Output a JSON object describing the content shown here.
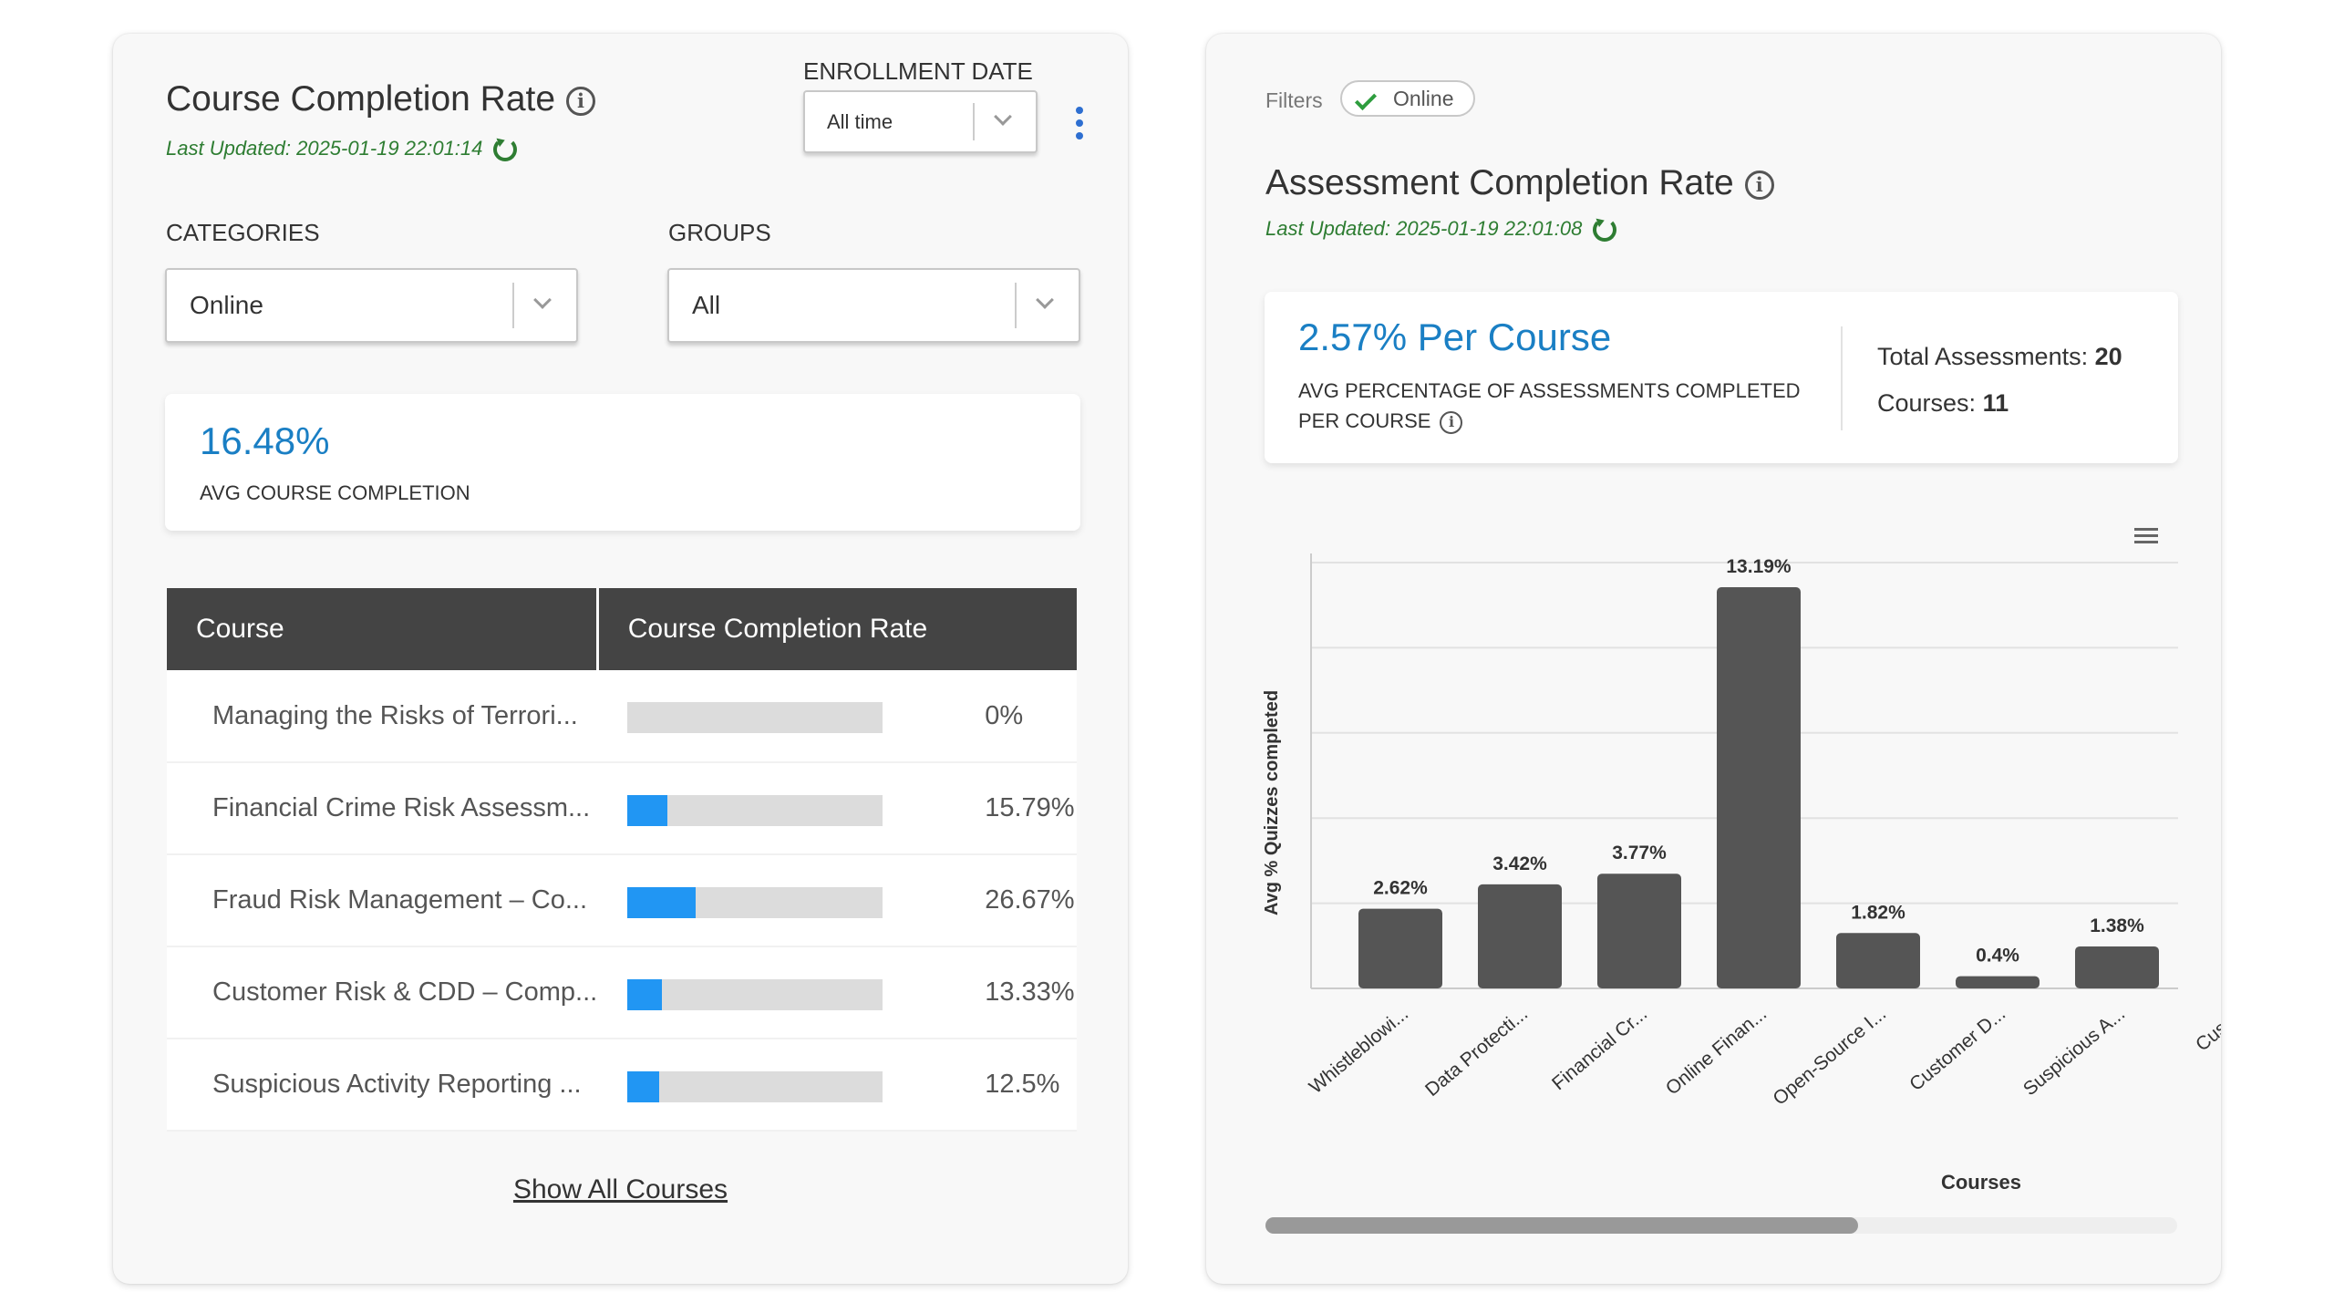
{
  "left": {
    "title": "Course Completion Rate",
    "info": "i",
    "last_updated": "Last Updated: 2025-01-19 22:01:14",
    "enrollment_label": "ENROLLMENT DATE",
    "enrollment_value": "All time",
    "categories_label": "CATEGORIES",
    "categories_value": "Online",
    "groups_label": "GROUPS",
    "groups_value": "All",
    "avg_value": "16.48%",
    "avg_label": "AVG COURSE COMPLETION",
    "table": {
      "headers": [
        "Course",
        "Course Completion Rate"
      ],
      "rows": [
        {
          "name": "Managing the Risks of Terrori...",
          "rate": 0,
          "label": "0%"
        },
        {
          "name": "Financial Crime Risk Assessm...",
          "rate": 15.79,
          "label": "15.79%"
        },
        {
          "name": "Fraud Risk Management – Co...",
          "rate": 26.67,
          "label": "26.67%"
        },
        {
          "name": "Customer Risk & CDD – Comp...",
          "rate": 13.33,
          "label": "13.33%"
        },
        {
          "name": "Suspicious Activity Reporting ...",
          "rate": 12.5,
          "label": "12.5%"
        }
      ]
    },
    "show_all": "Show All Courses"
  },
  "right": {
    "filters_label": "Filters",
    "filter_chip": "Online",
    "title": "Assessment Completion Rate",
    "info": "i",
    "last_updated": "Last Updated: 2025-01-19 22:01:08",
    "big_value": "2.57% Per Course",
    "big_label_line1": "AVG PERCENTAGE OF ASSESSMENTS COMPLETED",
    "big_label_line2": "PER COURSE",
    "total_label": "Total Assessments:",
    "total_value": "20",
    "courses_label": "Courses:",
    "courses_value": "11",
    "scroll_fraction": 0.65
  },
  "colors": {
    "accent": "#1a7fc4",
    "bar": "#555555",
    "progress": "#2196f3",
    "updated": "#2e7d32"
  },
  "chart_data": {
    "type": "bar",
    "categories": [
      "Whistleblowi...",
      "Data Protecti...",
      "Financial Cr...",
      "Online Finan...",
      "Open-Source I...",
      "Customer D...",
      "Suspicious A...",
      "Custor"
    ],
    "values": [
      2.62,
      3.42,
      3.77,
      13.19,
      1.82,
      0.4,
      1.38,
      null
    ],
    "data_labels": [
      "2.62%",
      "3.42%",
      "3.77%",
      "13.19%",
      "1.82%",
      "0.4%",
      "1.38%",
      ""
    ],
    "xlabel": "Courses",
    "ylabel": "Avg % Quizzes completed",
    "ylim": [
      0,
      14
    ],
    "grid": true
  }
}
